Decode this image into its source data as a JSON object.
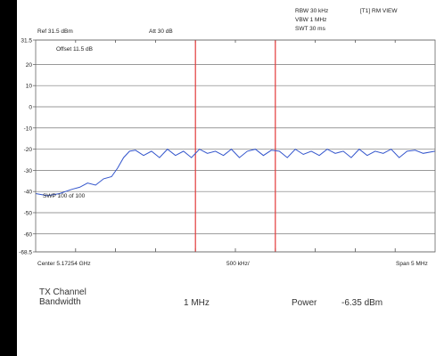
{
  "header": {
    "ref_level": "Ref 31.5 dBm",
    "attenuation": "Att 30 dB",
    "rbw": "RBW 30 kHz",
    "vbw": "VBW 1 MHz",
    "swt": "SWT 30 ms",
    "trace_mode": "[T1] RM VIEW",
    "offset": "Offset 11.5 dB",
    "sweep_count": "SWP 100 of 100"
  },
  "footer": {
    "center": "Center 5.17254 GHz",
    "division": "500 kHz/",
    "span": "Span 5 MHz"
  },
  "measurement": {
    "label_line1": "TX Channel",
    "label_line2": "Bandwidth",
    "bandwidth": "1 MHz",
    "power_label": "Power",
    "power_value": "-6.35 dBm"
  },
  "chart_data": {
    "type": "line",
    "yticks": [
      "31.5",
      "20",
      "10",
      "0",
      "-10",
      "-20",
      "-30",
      "-40",
      "-50",
      "-60",
      "-68.5"
    ],
    "ylim": [
      -68.5,
      31.5
    ],
    "xlim": [
      0,
      10
    ],
    "x_divisions": 10,
    "grid": true,
    "trace_color": "#3355cc",
    "marker_color": "#e23a3a",
    "channel_lines_x": [
      4,
      6
    ],
    "series": [
      {
        "x": [
          0,
          0.3,
          0.6,
          0.9,
          1.1,
          1.3,
          1.5,
          1.7,
          1.9,
          2.05,
          2.2,
          2.35,
          2.5,
          2.7,
          2.9,
          3.1,
          3.3,
          3.5,
          3.7,
          3.9,
          4.1,
          4.3,
          4.5,
          4.7,
          4.9,
          5.1,
          5.3,
          5.5,
          5.7,
          5.9,
          6.1,
          6.3,
          6.5,
          6.7,
          6.9,
          7.1,
          7.3,
          7.5,
          7.7,
          7.9,
          8.1,
          8.3,
          8.5,
          8.7,
          8.9,
          9.1,
          9.3,
          9.5,
          9.7,
          10
        ],
        "values": [
          -41,
          -42,
          -41,
          -39,
          -38,
          -36,
          -37,
          -34,
          -33,
          -29,
          -24,
          -21,
          -20.5,
          -23,
          -21,
          -24,
          -20,
          -23,
          -21,
          -24,
          -20,
          -22,
          -21,
          -23,
          -20,
          -24,
          -21,
          -20,
          -23,
          -20.5,
          -21,
          -24,
          -20,
          -22.5,
          -21,
          -23,
          -20,
          -22,
          -21,
          -24,
          -20,
          -23,
          -21,
          -22,
          -20,
          -24,
          -21,
          -20.5,
          -22,
          -21
        ]
      }
    ]
  }
}
